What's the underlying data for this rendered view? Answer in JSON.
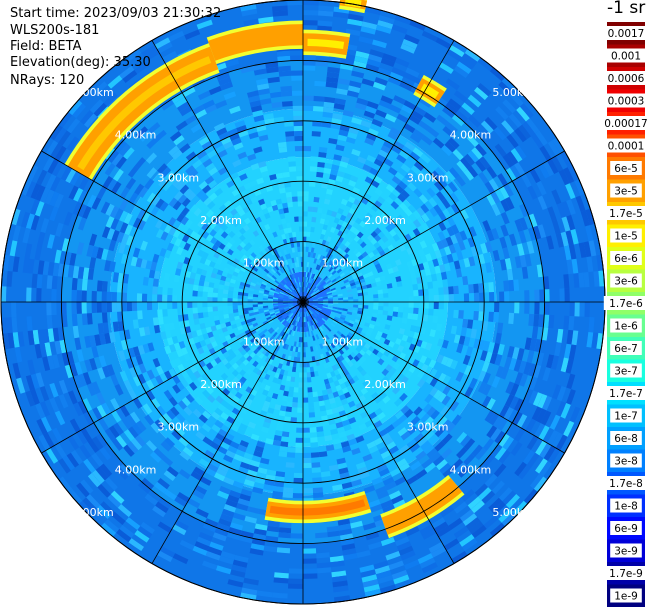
{
  "header": {
    "start_time": "Start time: 2023/09/03 21:30:32",
    "instrument": "WLS200s-181",
    "field": "Field: BETA",
    "elevation": "Elevation(deg): 35.30",
    "nrays": "NRays: 120"
  },
  "chart_data": {
    "type": "heatmap",
    "projection": "polar-ppi",
    "range_rings_km": [
      1.0,
      2.0,
      3.0,
      4.0,
      5.0
    ],
    "ring_labels": [
      "1.00km",
      "2.00km",
      "3.00km",
      "4.00km",
      "5.00km"
    ],
    "max_range_km": 5.0,
    "azimuth_spokes_deg": [
      0,
      30,
      60,
      90,
      120,
      150,
      180,
      210,
      240,
      270,
      300,
      330
    ],
    "nrays": 120,
    "colorbar": {
      "unit_label": "-1 sr",
      "tick_labels": [
        "0.0017",
        "0.001",
        "0.0006",
        "0.0003",
        "0.00017",
        "0.0001",
        "6e-5",
        "3e-5",
        "1.7e-5",
        "1e-5",
        "6e-6",
        "3e-6",
        "1.7e-6",
        "1e-6",
        "6e-7",
        "3e-7",
        "1.7e-7",
        "1e-7",
        "6e-8",
        "3e-8",
        "1.7e-8",
        "1e-8",
        "6e-9",
        "3e-9",
        "1.7e-9",
        "1e-9"
      ],
      "colors": [
        "#800000",
        "#a80000",
        "#d00000",
        "#f00000",
        "#ff2000",
        "#ff5000",
        "#ff7a00",
        "#ffa000",
        "#ffc800",
        "#ffef00",
        "#e0ff18",
        "#b8ff40",
        "#90ff68",
        "#68ff90",
        "#40ffb8",
        "#18ffe0",
        "#00e0ff",
        "#00c0ff",
        "#00a0ff",
        "#0080ff",
        "#0058ff",
        "#0030ff",
        "#0008ff",
        "#0000d8",
        "#0000a8",
        "#000080"
      ]
    },
    "field_levels_by_range": [
      {
        "range_km": [
          0.0,
          0.5
        ],
        "level": "1e-7",
        "color": "#1e72ff"
      },
      {
        "range_km": [
          0.5,
          1.0
        ],
        "level": "1.7e-7",
        "color": "#1ec2ff"
      },
      {
        "range_km": [
          1.0,
          2.4
        ],
        "level": "1.7e-7",
        "color": "#22d2ff"
      },
      {
        "range_km": [
          2.4,
          3.2
        ],
        "level": "1e-7",
        "color": "#18b4ff"
      },
      {
        "range_km": [
          3.2,
          4.0
        ],
        "level": "6e-8",
        "color": "#1396f2"
      },
      {
        "range_km": [
          4.0,
          5.0
        ],
        "level": "3e-8",
        "color": "#0f76e8"
      }
    ],
    "high_return_arcs": [
      {
        "azimuth_deg": [
          300,
          340
        ],
        "range_km": [
          4.1,
          4.5
        ],
        "level": "1.7e-5"
      },
      {
        "azimuth_deg": [
          340,
          360
        ],
        "range_km": [
          4.25,
          4.6
        ],
        "level": "3e-5"
      },
      {
        "azimuth_deg": [
          0,
          10
        ],
        "range_km": [
          4.15,
          4.45
        ],
        "level": "1e-5"
      },
      {
        "azimuth_deg": [
          7,
          12
        ],
        "range_km": [
          4.95,
          5.1
        ],
        "level": "1e-5"
      },
      {
        "azimuth_deg": [
          28,
          34
        ],
        "range_km": [
          3.95,
          4.2
        ],
        "level": "1e-5"
      },
      {
        "azimuth_deg": [
          140,
          160
        ],
        "range_km": [
          3.8,
          4.1
        ],
        "level": "3e-5"
      },
      {
        "azimuth_deg": [
          162,
          190
        ],
        "range_km": [
          3.35,
          3.6
        ],
        "level": "6e-5"
      }
    ]
  }
}
